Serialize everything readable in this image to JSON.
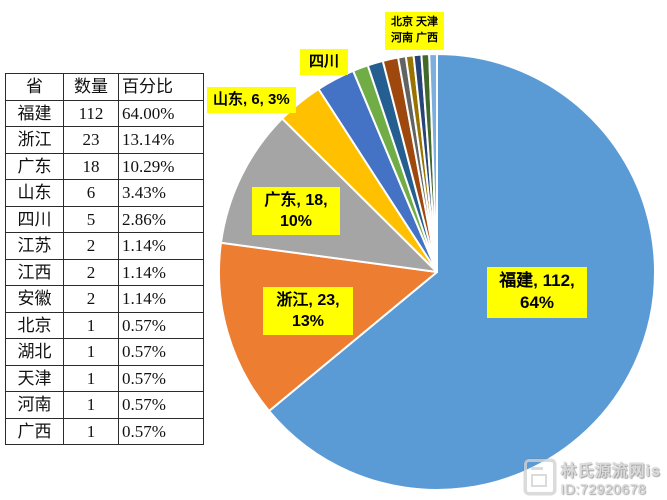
{
  "table": {
    "headers": [
      "省",
      "数量",
      "百分比"
    ],
    "rows": [
      [
        "福建",
        "112",
        "64.00%"
      ],
      [
        "浙江",
        "23",
        "13.14%"
      ],
      [
        "广东",
        "18",
        "10.29%"
      ],
      [
        "山东",
        "6",
        "3.43%"
      ],
      [
        "四川",
        "5",
        "2.86%"
      ],
      [
        "江苏",
        "2",
        "1.14%"
      ],
      [
        "江西",
        "2",
        "1.14%"
      ],
      [
        "安徽",
        "2",
        "1.14%"
      ],
      [
        "北京",
        "1",
        "0.57%"
      ],
      [
        "湖北",
        "1",
        "0.57%"
      ],
      [
        "天津",
        "1",
        "0.57%"
      ],
      [
        "河南",
        "1",
        "0.57%"
      ],
      [
        "广西",
        "1",
        "0.57%"
      ]
    ]
  },
  "chart_data": {
    "type": "pie",
    "title": "",
    "categories": [
      "福建",
      "浙江",
      "广东",
      "山东",
      "四川",
      "江苏",
      "江西",
      "安徽",
      "北京",
      "湖北",
      "天津",
      "河南",
      "广西"
    ],
    "values": [
      112,
      23,
      18,
      6,
      5,
      2,
      2,
      2,
      1,
      1,
      1,
      1,
      1
    ],
    "percentages": [
      64.0,
      13.14,
      10.29,
      3.43,
      2.86,
      1.14,
      1.14,
      1.14,
      0.57,
      0.57,
      0.57,
      0.57,
      0.57
    ],
    "colors": [
      "#5B9BD5",
      "#ED7D31",
      "#A5A5A5",
      "#FFC000",
      "#4472C4",
      "#70AD47",
      "#255E91",
      "#9E480E",
      "#636363",
      "#997300",
      "#264478",
      "#43682B",
      "#7CAFDD"
    ],
    "start_angle_deg": 0,
    "direction": "clockwise",
    "slice_border_color": "#ffffff",
    "legend_position": "none",
    "labels": [
      {
        "id": "fujian",
        "line1": "福建, 112,",
        "line2": "64%"
      },
      {
        "id": "zhejiang",
        "line1": "浙江, 23,",
        "line2": "13%"
      },
      {
        "id": "guangdong",
        "line1": "广东, 18,",
        "line2": "10%"
      },
      {
        "id": "shandong",
        "line1": "山东, 6, 3%",
        "line2": ""
      },
      {
        "id": "sichuan",
        "line1": "四川",
        "line2": ""
      },
      {
        "id": "small-group",
        "line1": "北京 天津",
        "line2": "河南 广西"
      }
    ],
    "label_highlight_color": "#FFFF00"
  },
  "watermark": {
    "line1": "林氏源流网is",
    "line2": "ID:72920678",
    "icon": "watermark-logo-icon"
  }
}
